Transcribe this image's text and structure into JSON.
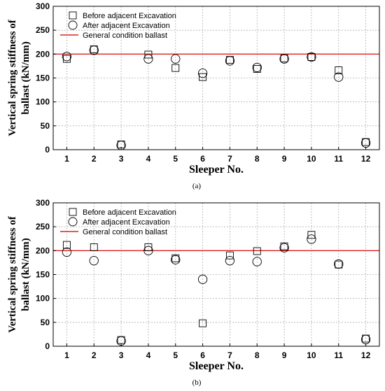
{
  "chart_data": [
    {
      "type": "scatter",
      "panel_label": "(a)",
      "x": [
        1,
        2,
        3,
        4,
        5,
        6,
        7,
        8,
        9,
        10,
        11,
        12
      ],
      "xlabel": "Sleeper No.",
      "ylabel": "Vertical spring stiffness of ballast (kN/mm)",
      "ylabel_lines": [
        "Vertical spring stiffness of",
        "ballast (kN/mm)"
      ],
      "ylim": [
        0,
        300
      ],
      "yticks": [
        0,
        50,
        100,
        150,
        200,
        250,
        300
      ],
      "xticks": [
        1,
        2,
        3,
        4,
        5,
        6,
        7,
        8,
        9,
        10,
        11,
        12
      ],
      "grid": true,
      "legend_position": "top-left",
      "reference_line": {
        "name": "General condition ballast",
        "value": 200,
        "color": "#e02020"
      },
      "series": [
        {
          "name": "Before adjacent Excavation",
          "marker": "square",
          "values": [
            190,
            210,
            11,
            199,
            171,
            152,
            188,
            169,
            191,
            194,
            166,
            16
          ]
        },
        {
          "name": "After adjacent Excavation",
          "marker": "circle",
          "values": [
            195,
            208,
            9,
            190,
            190,
            160,
            186,
            172,
            190,
            194,
            152,
            14
          ]
        }
      ]
    },
    {
      "type": "scatter",
      "panel_label": "(b)",
      "x": [
        1,
        2,
        3,
        4,
        5,
        6,
        7,
        8,
        9,
        10,
        11,
        12
      ],
      "xlabel": "Sleeper No.",
      "ylabel": "Vertical spring stiffness of ballast (kN/mm)",
      "ylabel_lines": [
        "Vertical spring stiffness of",
        "ballast (kN/mm)"
      ],
      "ylim": [
        0,
        300
      ],
      "yticks": [
        0,
        50,
        100,
        150,
        200,
        250,
        300
      ],
      "xticks": [
        1,
        2,
        3,
        4,
        5,
        6,
        7,
        8,
        9,
        10,
        11,
        12
      ],
      "grid": true,
      "legend_position": "top-left",
      "reference_line": {
        "name": "General condition ballast",
        "value": 200,
        "color": "#e02020"
      },
      "series": [
        {
          "name": "Before adjacent Excavation",
          "marker": "square",
          "values": [
            212,
            207,
            13,
            207,
            184,
            48,
            190,
            199,
            209,
            233,
            171,
            16
          ]
        },
        {
          "name": "After adjacent Excavation",
          "marker": "circle",
          "values": [
            197,
            179,
            11,
            200,
            181,
            140,
            179,
            177,
            206,
            224,
            172,
            14
          ]
        }
      ]
    }
  ]
}
